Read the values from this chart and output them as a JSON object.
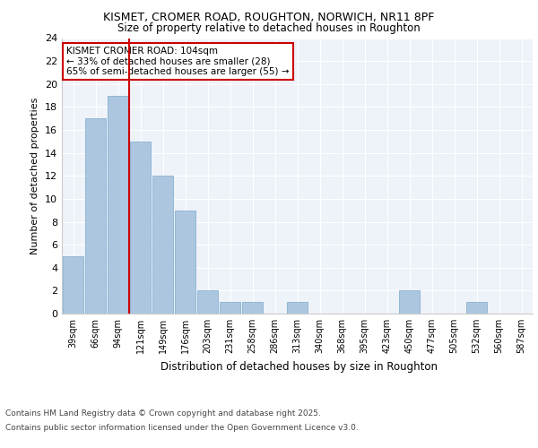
{
  "title1": "KISMET, CROMER ROAD, ROUGHTON, NORWICH, NR11 8PF",
  "title2": "Size of property relative to detached houses in Roughton",
  "xlabel": "Distribution of detached houses by size in Roughton",
  "ylabel": "Number of detached properties",
  "categories": [
    "39sqm",
    "66sqm",
    "94sqm",
    "121sqm",
    "149sqm",
    "176sqm",
    "203sqm",
    "231sqm",
    "258sqm",
    "286sqm",
    "313sqm",
    "340sqm",
    "368sqm",
    "395sqm",
    "423sqm",
    "450sqm",
    "477sqm",
    "505sqm",
    "532sqm",
    "560sqm",
    "587sqm"
  ],
  "values": [
    5,
    17,
    19,
    15,
    12,
    9,
    2,
    1,
    1,
    0,
    1,
    0,
    0,
    0,
    0,
    2,
    0,
    0,
    1,
    0,
    0
  ],
  "bar_color": "#adc6e0",
  "bar_edge_color": "#7aaaca",
  "property_line_x": 2.5,
  "annotation_title": "KISMET CROMER ROAD: 104sqm",
  "annotation_line1": "← 33% of detached houses are smaller (28)",
  "annotation_line2": "65% of semi-detached houses are larger (55) →",
  "red_line_color": "#cc0000",
  "annotation_box_color": "#cc0000",
  "ylim": [
    0,
    24
  ],
  "yticks": [
    0,
    2,
    4,
    6,
    8,
    10,
    12,
    14,
    16,
    18,
    20,
    22,
    24
  ],
  "footnote1": "Contains HM Land Registry data © Crown copyright and database right 2025.",
  "footnote2": "Contains public sector information licensed under the Open Government Licence v3.0.",
  "background_color": "#eef2f9",
  "grid_color": "#ffffff"
}
